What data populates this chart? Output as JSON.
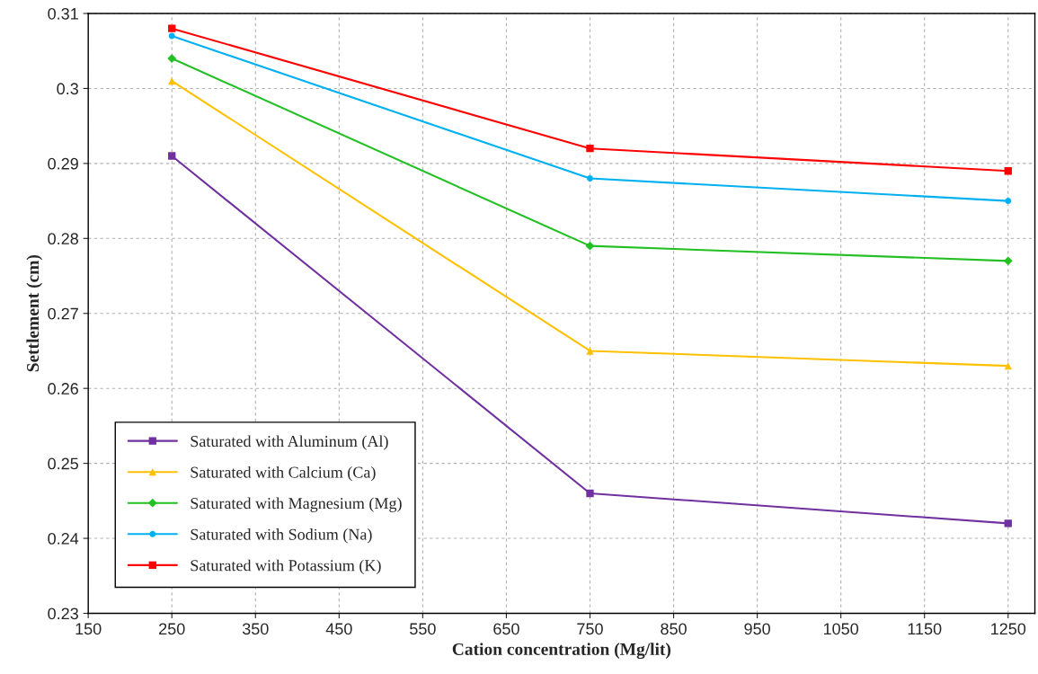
{
  "chart_data": {
    "type": "line",
    "xlabel": "Cation concentration (Mg/lit)",
    "ylabel": "Settlement (cm)",
    "x": [
      250,
      750,
      1250
    ],
    "series": [
      {
        "name": "Saturated with Aluminum (Al)",
        "color": "#7030a0",
        "marker": "square",
        "values": [
          0.291,
          0.246,
          0.242
        ]
      },
      {
        "name": "Saturated with Calcium (Ca)",
        "color": "#ffc000",
        "marker": "triangle",
        "values": [
          0.301,
          0.265,
          0.263
        ]
      },
      {
        "name": "Saturated with Magnesium (Mg)",
        "color": "#22c022",
        "marker": "diamond",
        "values": [
          0.304,
          0.279,
          0.277
        ]
      },
      {
        "name": "Saturated with Sodium (Na)",
        "color": "#00b0f0",
        "marker": "circle",
        "values": [
          0.307,
          0.288,
          0.285
        ]
      },
      {
        "name": "Saturated with Potassium (K)",
        "color": "#ff0000",
        "marker": "square",
        "values": [
          0.308,
          0.292,
          0.289
        ]
      }
    ],
    "xlim": [
      150,
      1282
    ],
    "xticks": [
      150,
      250,
      350,
      450,
      550,
      650,
      750,
      850,
      950,
      1050,
      1150,
      1250
    ],
    "ylim": [
      0.23,
      0.31
    ],
    "yticks": [
      0.23,
      0.24,
      0.25,
      0.26,
      0.27,
      0.28,
      0.29,
      0.3,
      0.31
    ],
    "grid": true,
    "legend": "bottom left",
    "line_style": "solid"
  }
}
